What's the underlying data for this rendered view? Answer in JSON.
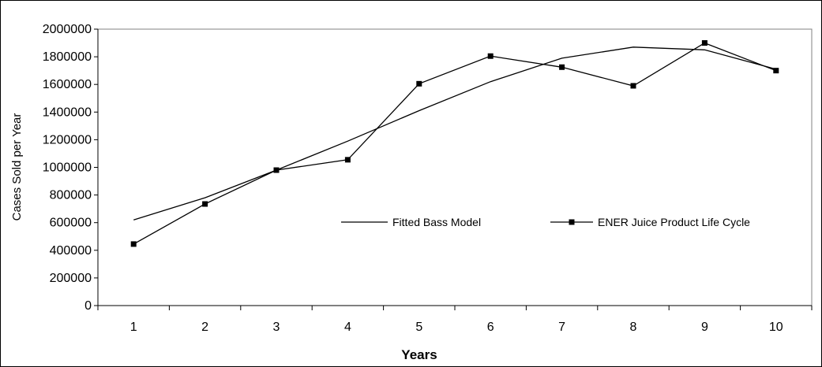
{
  "chart_data": {
    "type": "line",
    "title": "",
    "xlabel": "Years",
    "ylabel": "Cases Sold per Year",
    "x": [
      1,
      2,
      3,
      4,
      5,
      6,
      7,
      8,
      9,
      10
    ],
    "ylim": [
      0,
      2000000
    ],
    "y_ticks": [
      0,
      200000,
      400000,
      600000,
      800000,
      1000000,
      1200000,
      1400000,
      1600000,
      1800000,
      2000000
    ],
    "y_tick_labels": [
      "0",
      "200000",
      "400000",
      "600000",
      "800000",
      "1000000",
      "1200000",
      "1400000",
      "1600000",
      "1800000",
      "2000000"
    ],
    "x_tick_labels": [
      "1",
      "2",
      "3",
      "4",
      "5",
      "6",
      "7",
      "8",
      "9",
      "10"
    ],
    "grid": false,
    "legend_position": "center-right inside plot",
    "series": [
      {
        "name": "Fitted Bass Model",
        "marker": "none",
        "color": "#000000",
        "values": [
          620000,
          780000,
          980000,
          1190000,
          1410000,
          1620000,
          1790000,
          1870000,
          1850000,
          1710000
        ]
      },
      {
        "name": "ENER Juice Product Life Cycle",
        "marker": "square",
        "color": "#000000",
        "values": [
          445000,
          735000,
          980000,
          1055000,
          1605000,
          1805000,
          1725000,
          1590000,
          1900000,
          1700000
        ]
      }
    ]
  }
}
